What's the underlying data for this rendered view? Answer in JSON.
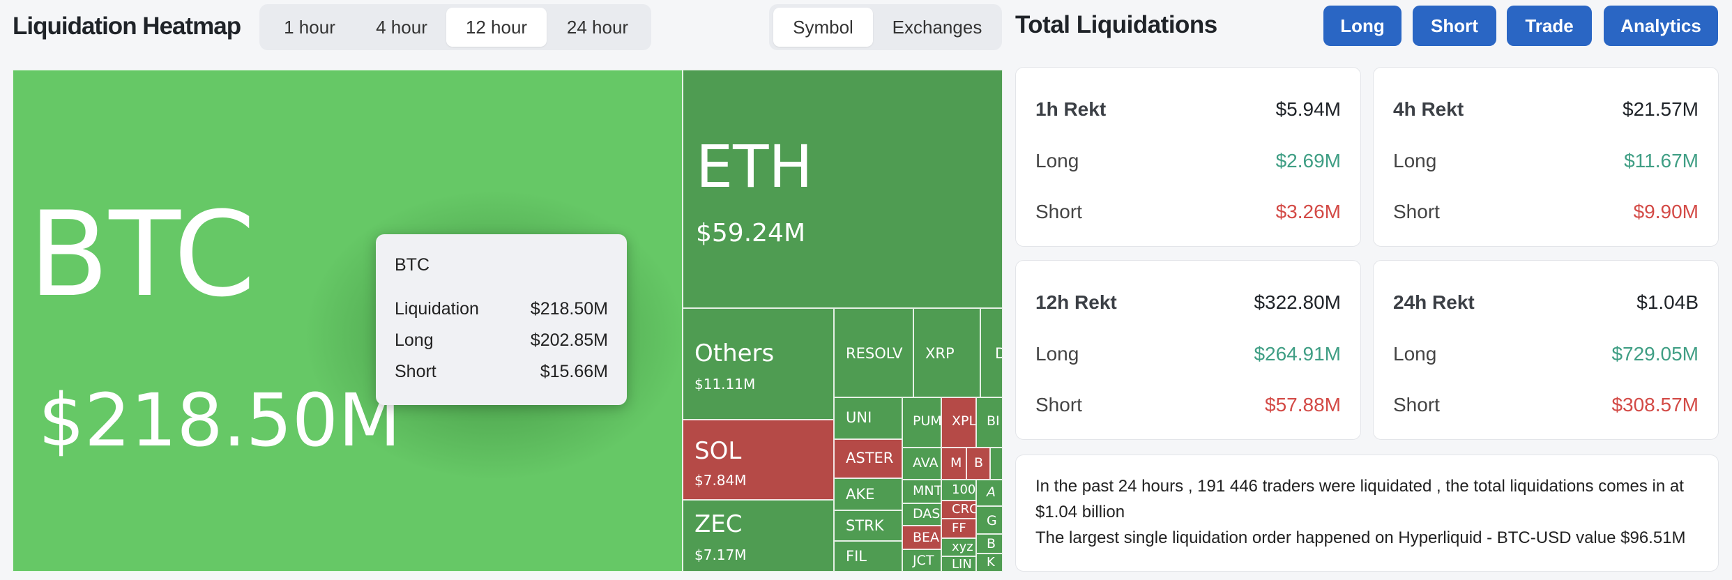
{
  "header": {
    "title": "Liquidation Heatmap",
    "time_tabs": [
      {
        "label": "1 hour",
        "active": false
      },
      {
        "label": "4 hour",
        "active": false
      },
      {
        "label": "12 hour",
        "active": true
      },
      {
        "label": "24 hour",
        "active": false
      }
    ],
    "group_tabs": [
      {
        "label": "Symbol",
        "active": true
      },
      {
        "label": "Exchanges",
        "active": false
      }
    ]
  },
  "treemap": {
    "btc": {
      "symbol": "BTC",
      "value": "$218.50M"
    },
    "eth": {
      "symbol": "ETH",
      "value": "$59.24M"
    },
    "others": {
      "symbol": "Others",
      "value": "$11.11M"
    },
    "sol": {
      "symbol": "SOL",
      "value": "$7.84M"
    },
    "zec": {
      "symbol": "ZEC",
      "value": "$7.17M"
    },
    "small": {
      "resolv": "RESOLV",
      "xrp": "XRP",
      "d": "D",
      "uni": "UNI",
      "aster": "ASTER",
      "ake": "AKE",
      "strk": "STRK",
      "fil": "FIL",
      "pum": "PUM",
      "xpl": "XPL",
      "bi": "BI",
      "ava": "AVA",
      "m": "M",
      "b": "B",
      "mnt": "MNT",
      "n100": "100",
      "a": "A",
      "das": "DAS",
      "cro": "CRO",
      "g": "G",
      "ff": "FF",
      "bea": "BEA",
      "xyz": "xyz",
      "bb": "B",
      "jct": "JCT",
      "lin": "LIN",
      "k": "K"
    }
  },
  "tooltip": {
    "symbol": "BTC",
    "rows": [
      {
        "label": "Liquidation",
        "value": "$218.50M"
      },
      {
        "label": "Long",
        "value": "$202.85M"
      },
      {
        "label": "Short",
        "value": "$15.66M"
      }
    ]
  },
  "panel": {
    "title": "Total Liquidations",
    "buttons": [
      "Long",
      "Short",
      "Trade",
      "Analytics"
    ],
    "cards": [
      {
        "title": "1h Rekt",
        "total": "$5.94M",
        "long_label": "Long",
        "long": "$2.69M",
        "short_label": "Short",
        "short": "$3.26M"
      },
      {
        "title": "4h Rekt",
        "total": "$21.57M",
        "long_label": "Long",
        "long": "$11.67M",
        "short_label": "Short",
        "short": "$9.90M"
      },
      {
        "title": "12h Rekt",
        "total": "$322.80M",
        "long_label": "Long",
        "long": "$264.91M",
        "short_label": "Short",
        "short": "$57.88M"
      },
      {
        "title": "24h Rekt",
        "total": "$1.04B",
        "long_label": "Long",
        "long": "$729.05M",
        "short_label": "Short",
        "short": "$308.57M"
      }
    ],
    "summary_line1": "In the past 24 hours , 191 446 traders were liquidated , the total liquidations comes in at $1.04 billion",
    "summary_line2": "The largest single liquidation order happened on Hyperliquid - BTC-USD value $96.51M"
  },
  "colors": {
    "long_green": "#3f9e84",
    "short_red": "#d34a46",
    "button_blue": "#2a66c4",
    "treemap_green": "#4f9c52",
    "treemap_red": "#b54a47"
  }
}
